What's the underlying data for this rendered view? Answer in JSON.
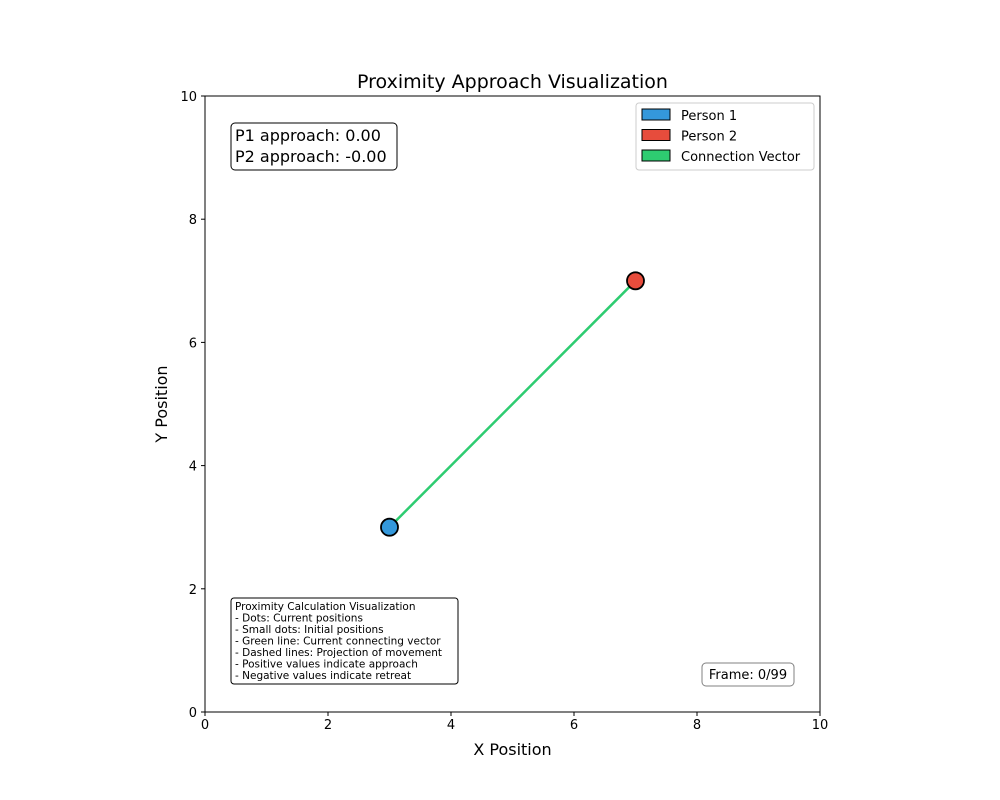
{
  "chart_data": {
    "type": "scatter",
    "title": "Proximity Approach Visualization",
    "xlabel": "X Position",
    "ylabel": "Y Position",
    "xlim": [
      0,
      10
    ],
    "ylim": [
      0,
      10
    ],
    "xticks": [
      "0",
      "2",
      "4",
      "6",
      "8",
      "10"
    ],
    "yticks": [
      "0",
      "2",
      "4",
      "6",
      "8",
      "10"
    ],
    "grid": false,
    "legend_placement": "top-right",
    "legend": [
      {
        "label": "Person 1",
        "color": "#3498db"
      },
      {
        "label": "Person 2",
        "color": "#e74c3c"
      },
      {
        "label": "Connection Vector",
        "color": "#2ecc71"
      }
    ],
    "series": [
      {
        "name": "Person 1",
        "points": [
          {
            "x": 3,
            "y": 3
          }
        ],
        "color": "#3498db"
      },
      {
        "name": "Person 2",
        "points": [
          {
            "x": 7,
            "y": 7
          }
        ],
        "color": "#e74c3c"
      },
      {
        "name": "Connection Vector",
        "line": [
          {
            "x": 3,
            "y": 3
          },
          {
            "x": 7,
            "y": 7
          }
        ],
        "color": "#2ecc71"
      }
    ],
    "annotations": {
      "approach": [
        "P1 approach: 0.00",
        "P2 approach: -0.00"
      ],
      "info": [
        "Proximity Calculation Visualization",
        "- Dots: Current positions",
        "- Small dots: Initial positions",
        "- Green line: Current connecting vector",
        "- Dashed lines: Projection of movement",
        "- Positive values indicate approach",
        "- Negative values indicate retreat"
      ],
      "frame": "Frame: 0/99"
    }
  }
}
